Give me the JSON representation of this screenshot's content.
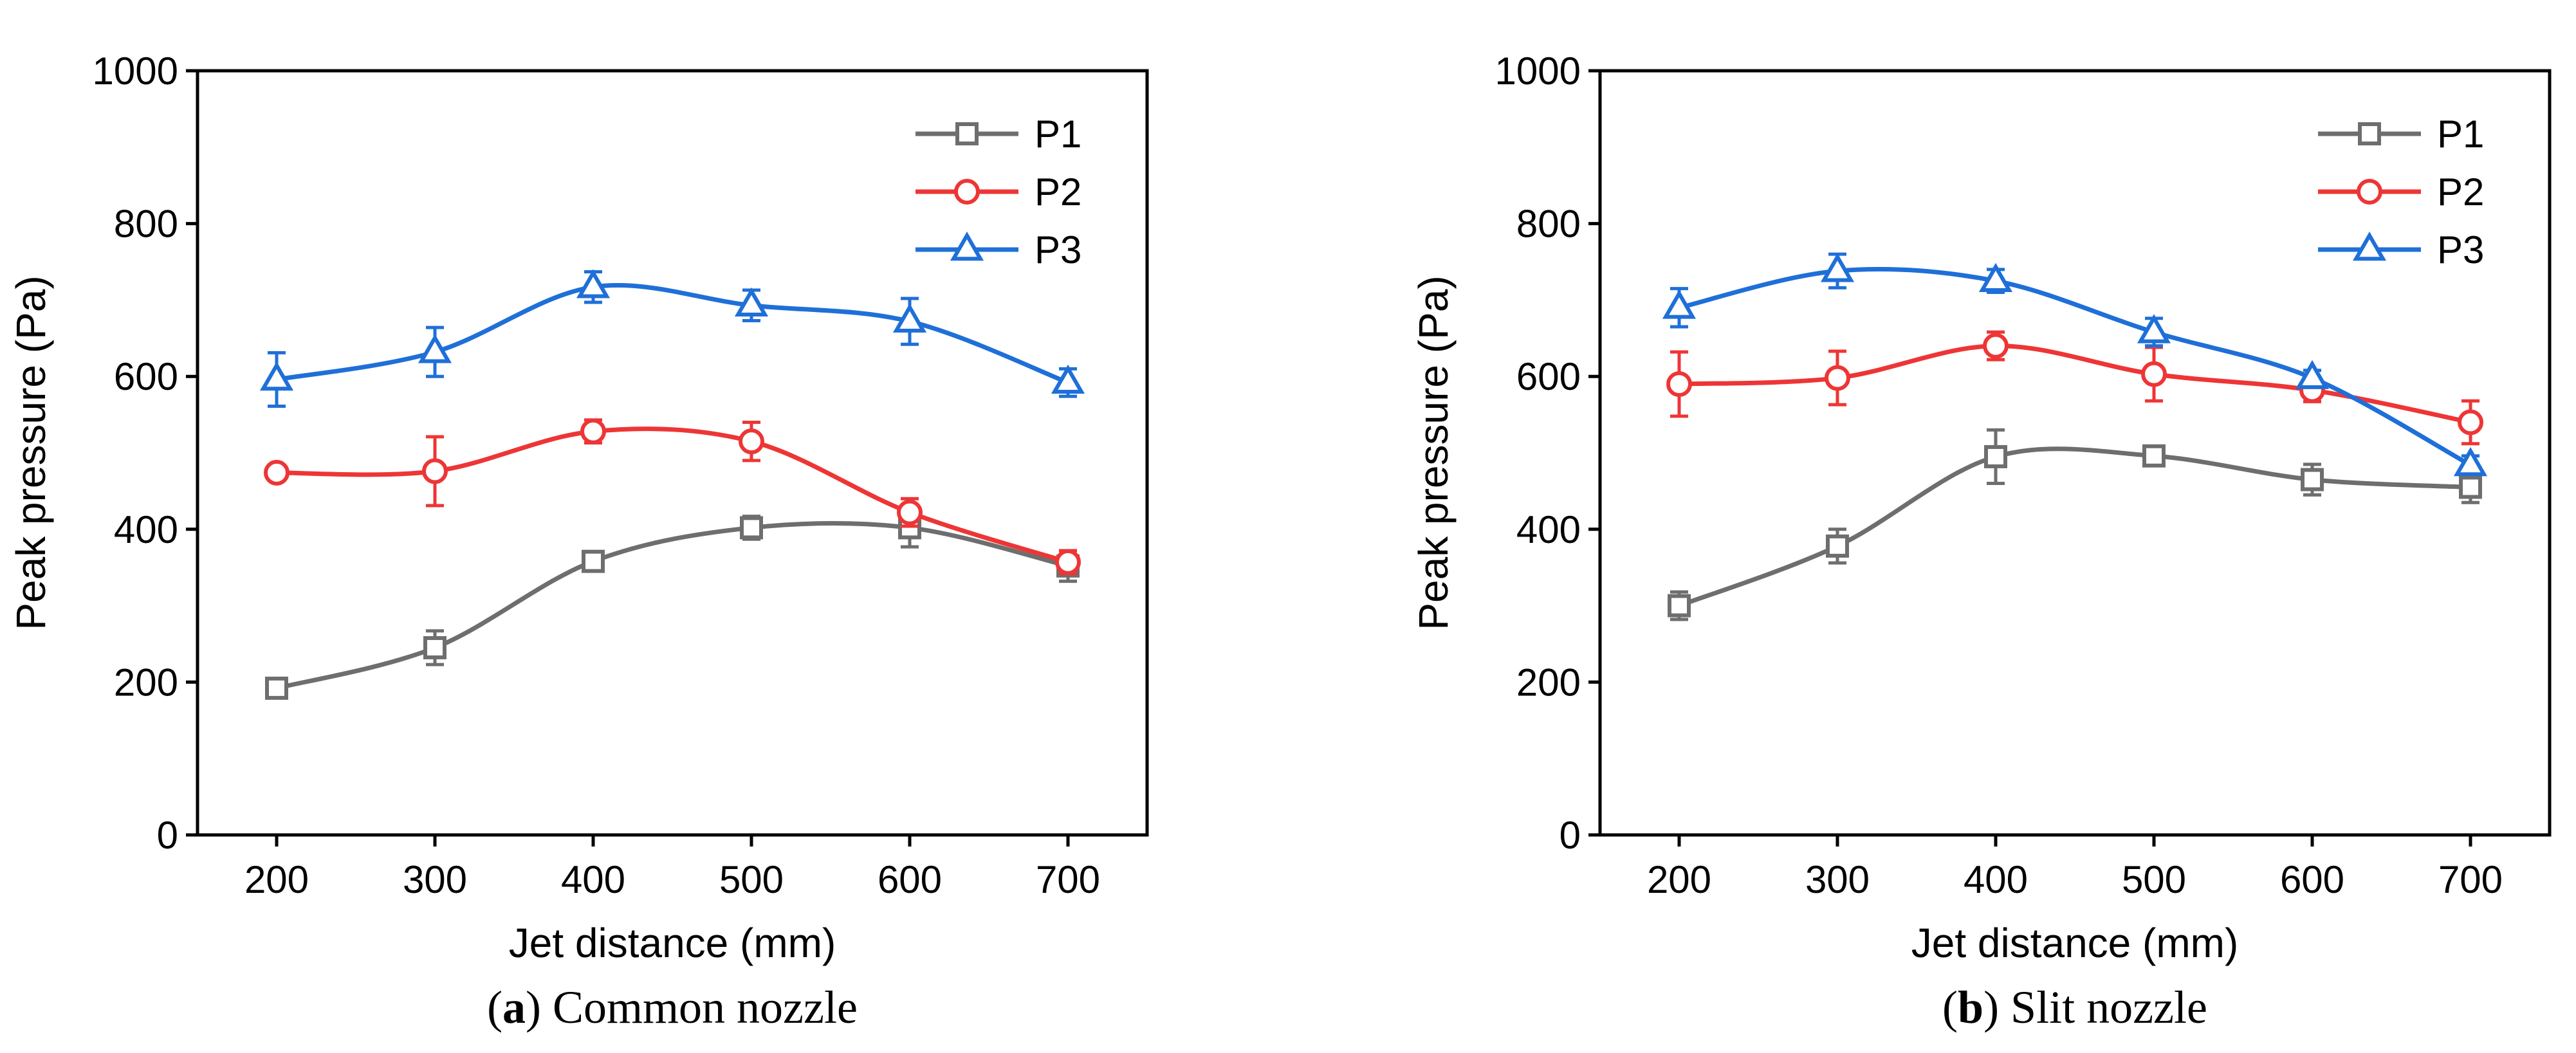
{
  "colors": {
    "P1": "#6e6e6e",
    "P2": "#ee3535",
    "P3": "#1f6fd8",
    "axis": "#000000"
  },
  "chart_data": [
    {
      "type": "line",
      "caption": {
        "letter": "a",
        "text": "Common nozzle"
      },
      "xlabel": "Jet distance (mm)",
      "ylabel": "Peak pressure (Pa)",
      "x": [
        200,
        300,
        400,
        500,
        600,
        700
      ],
      "xlim": [
        150,
        750
      ],
      "ylim": [
        0,
        1000
      ],
      "xticks": [
        200,
        300,
        400,
        500,
        600,
        700
      ],
      "yticks": [
        0,
        200,
        400,
        600,
        800,
        1000
      ],
      "grid": false,
      "legend": "top-right",
      "series": [
        {
          "name": "P1",
          "marker": "square",
          "values": [
            192,
            245,
            358,
            402,
            402,
            352
          ],
          "errors": [
            8,
            22,
            10,
            15,
            25,
            20
          ]
        },
        {
          "name": "P2",
          "marker": "circle",
          "values": [
            474,
            476,
            528,
            515,
            422,
            357
          ],
          "errors": [
            10,
            45,
            15,
            25,
            18,
            15
          ]
        },
        {
          "name": "P3",
          "marker": "triangle",
          "values": [
            596,
            632,
            717,
            693,
            672,
            592
          ],
          "errors": [
            35,
            32,
            20,
            20,
            30,
            18
          ]
        }
      ]
    },
    {
      "type": "line",
      "caption": {
        "letter": "b",
        "text": "Slit nozzle"
      },
      "xlabel": "Jet distance (mm)",
      "ylabel": "Peak pressure (Pa)",
      "x": [
        200,
        300,
        400,
        500,
        600,
        700
      ],
      "xlim": [
        150,
        750
      ],
      "ylim": [
        0,
        1000
      ],
      "xticks": [
        200,
        300,
        400,
        500,
        600,
        700
      ],
      "yticks": [
        0,
        200,
        400,
        600,
        800,
        1000
      ],
      "grid": false,
      "legend": "top-right",
      "series": [
        {
          "name": "P1",
          "marker": "square",
          "values": [
            300,
            378,
            495,
            496,
            465,
            455
          ],
          "errors": [
            18,
            22,
            35,
            12,
            20,
            20
          ]
        },
        {
          "name": "P2",
          "marker": "circle",
          "values": [
            590,
            598,
            640,
            603,
            582,
            540
          ],
          "errors": [
            42,
            35,
            18,
            35,
            15,
            28
          ]
        },
        {
          "name": "P3",
          "marker": "triangle",
          "values": [
            690,
            738,
            725,
            658,
            598,
            484
          ],
          "errors": [
            25,
            22,
            15,
            18,
            10,
            12
          ]
        }
      ]
    }
  ]
}
